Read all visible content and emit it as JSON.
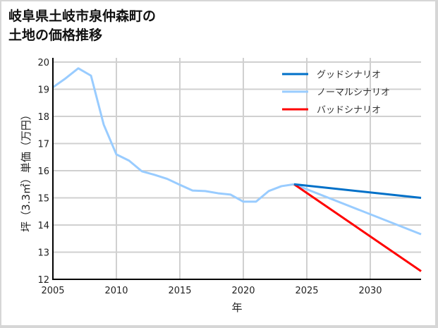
{
  "title_line1": "岐阜県土岐市泉仲森町の",
  "title_line2": "土地の価格推移",
  "chart_data": {
    "type": "line",
    "title": "岐阜県土岐市泉仲森町の土地の価格推移",
    "xlabel": "年",
    "ylabel": "坪（3.3㎡）単価（万円）",
    "xlim": [
      2005,
      2034
    ],
    "ylim": [
      12,
      20
    ],
    "xticks": [
      2005,
      2010,
      2015,
      2020,
      2025,
      2030
    ],
    "yticks": [
      12,
      13,
      14,
      15,
      16,
      17,
      18,
      19,
      20
    ],
    "grid": true,
    "legend_position": "upper right",
    "series": [
      {
        "name": "グッドシナリオ",
        "color": "#0070c8",
        "x": [
          2024,
          2034
        ],
        "values": [
          15.5,
          15.0
        ]
      },
      {
        "name": "ノーマルシナリオ",
        "color": "#99ccff",
        "x": [
          2005,
          2006,
          2007,
          2008,
          2009,
          2010,
          2011,
          2012,
          2013,
          2014,
          2015,
          2016,
          2017,
          2018,
          2019,
          2020,
          2021,
          2022,
          2023,
          2024,
          2034
        ],
        "values": [
          19.07,
          19.4,
          19.77,
          19.5,
          17.7,
          16.6,
          16.37,
          15.98,
          15.85,
          15.7,
          15.48,
          15.27,
          15.25,
          15.17,
          15.12,
          14.86,
          14.86,
          15.25,
          15.43,
          15.5,
          13.66
        ]
      },
      {
        "name": "バッドシナリオ",
        "color": "#ff0000",
        "x": [
          2024,
          2034
        ],
        "values": [
          15.5,
          12.3
        ]
      }
    ]
  }
}
